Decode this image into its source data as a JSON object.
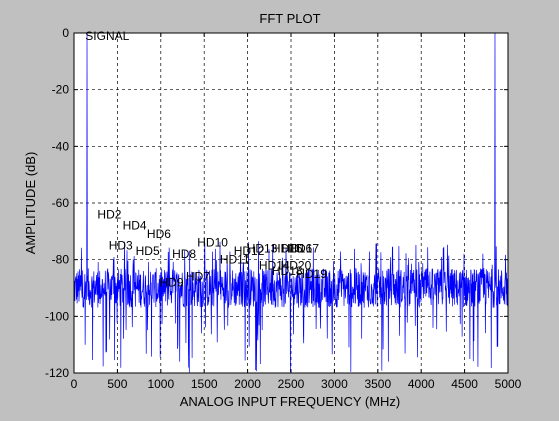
{
  "chart_data": {
    "type": "line",
    "title": "FFT PLOT",
    "xlabel": "ANALOG INPUT FREQUENCY (MHz)",
    "ylabel": "AMPLITUDE (dB)",
    "xlim": [
      0,
      5000
    ],
    "ylim": [
      -120,
      0
    ],
    "xticks": [
      0,
      500,
      1000,
      1500,
      2000,
      2500,
      3000,
      3500,
      4000,
      4500,
      5000
    ],
    "yticks": [
      0,
      -20,
      -40,
      -60,
      -80,
      -100,
      -120
    ],
    "grid": true,
    "grid_style": "dashed",
    "series_color": "#0000ff",
    "noise_floor": {
      "mean_db": -90,
      "typical_band_db": [
        -97,
        -83
      ],
      "spike_range_db": [
        -120,
        -73
      ]
    },
    "peaks": [
      {
        "x": 150,
        "y": 0
      },
      {
        "x": 4850,
        "y": 0
      }
    ],
    "annotations": [
      {
        "text": "SIGNAL",
        "x": 130,
        "y": -1
      },
      {
        "text": "HD2",
        "x": 270,
        "y": -64
      },
      {
        "text": "HD3",
        "x": 400,
        "y": -75
      },
      {
        "text": "HD4",
        "x": 560,
        "y": -68
      },
      {
        "text": "HD5",
        "x": 710,
        "y": -77
      },
      {
        "text": "HD6",
        "x": 840,
        "y": -71
      },
      {
        "text": "HD7",
        "x": 1290,
        "y": -86
      },
      {
        "text": "HD8",
        "x": 1130,
        "y": -78
      },
      {
        "text": "HD9",
        "x": 985,
        "y": -88
      },
      {
        "text": "HD10",
        "x": 1420,
        "y": -74
      },
      {
        "text": "HD11",
        "x": 1680,
        "y": -80
      },
      {
        "text": "HD12",
        "x": 1840,
        "y": -77
      },
      {
        "text": "HD13",
        "x": 1990,
        "y": -76
      },
      {
        "text": "HD14",
        "x": 2130,
        "y": -82
      },
      {
        "text": "HD15",
        "x": 2280,
        "y": -76
      },
      {
        "text": "HD16",
        "x": 2390,
        "y": -76
      },
      {
        "text": "HD17",
        "x": 2470,
        "y": -76
      },
      {
        "text": "HD18",
        "x": 2280,
        "y": -84
      },
      {
        "text": "HD19",
        "x": 2560,
        "y": -85
      },
      {
        "text": "HD20",
        "x": 2380,
        "y": -82
      }
    ]
  }
}
